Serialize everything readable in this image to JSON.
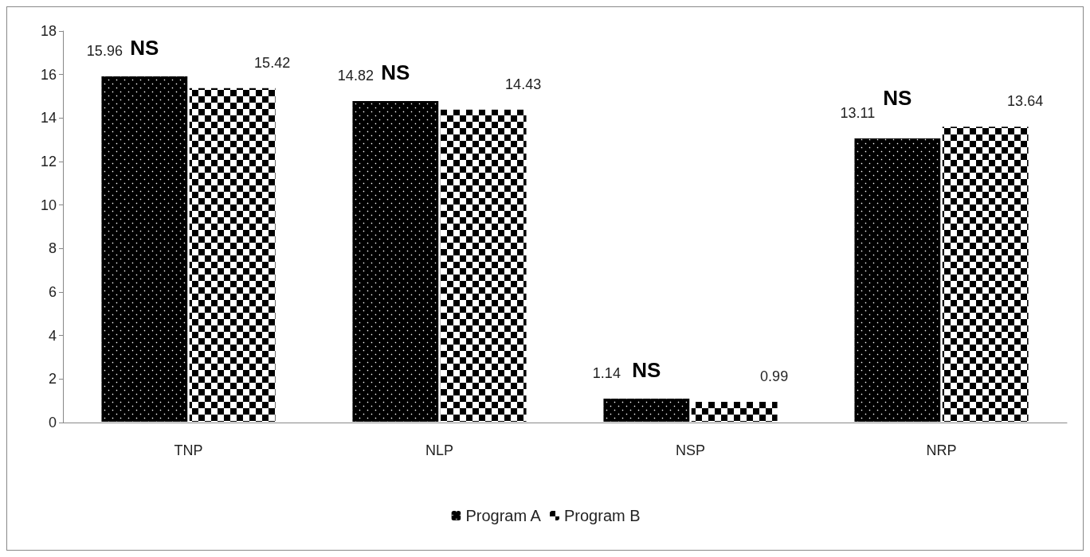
{
  "chart_data": {
    "type": "bar",
    "categories": [
      "TNP",
      "NLP",
      "NSP",
      "NRP"
    ],
    "series": [
      {
        "name": "Program A",
        "color": "#000000",
        "values": [
          15.96,
          14.82,
          1.14,
          13.11
        ]
      },
      {
        "name": "Program B",
        "color": "#000000",
        "values": [
          15.42,
          14.43,
          0.99,
          13.64
        ]
      }
    ],
    "ylim": [
      0,
      18
    ],
    "yticks": [
      0,
      2,
      4,
      6,
      8,
      10,
      12,
      14,
      16,
      18
    ],
    "grid": false,
    "legend": "bottom",
    "data_labels": true,
    "annotations": [
      "NS",
      "NS",
      "NS",
      "NS"
    ]
  }
}
